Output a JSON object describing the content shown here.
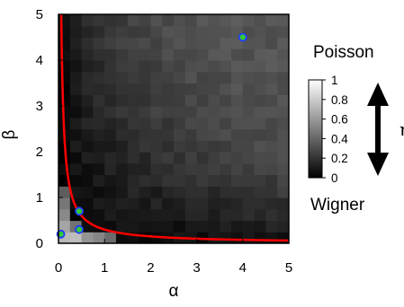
{
  "chart_data": {
    "type": "heatmap",
    "xlabel": "α",
    "ylabel": "β",
    "xlim": [
      0,
      5
    ],
    "ylim": [
      0,
      5
    ],
    "x_ticks": [
      "0",
      "1",
      "2",
      "3",
      "4",
      "5"
    ],
    "y_ticks": [
      "0",
      "1",
      "2",
      "3",
      "4",
      "5"
    ],
    "grid_size": [
      20,
      20
    ],
    "colormap": {
      "low": "#000000",
      "high": "#ffffff"
    },
    "colorbar": {
      "ticks": [
        "0",
        "0.2",
        "0.4",
        "0.6",
        "0.8",
        "1"
      ],
      "range": [
        0,
        1
      ],
      "label_top": "Poisson",
      "label_bottom": "Wigner",
      "quantity": "η"
    },
    "curve": {
      "color": "#ff0000",
      "relation": "alpha*beta = const",
      "const": 0.3,
      "x_range": [
        0.06,
        5
      ]
    },
    "markers": {
      "fill": "#33cc33",
      "edge": "#1f3bff",
      "points": [
        {
          "alpha": 0.05,
          "beta": 0.2
        },
        {
          "alpha": 0.45,
          "beta": 0.3
        },
        {
          "alpha": 0.45,
          "beta": 0.7
        },
        {
          "alpha": 4.0,
          "beta": 4.5
        }
      ]
    }
  }
}
